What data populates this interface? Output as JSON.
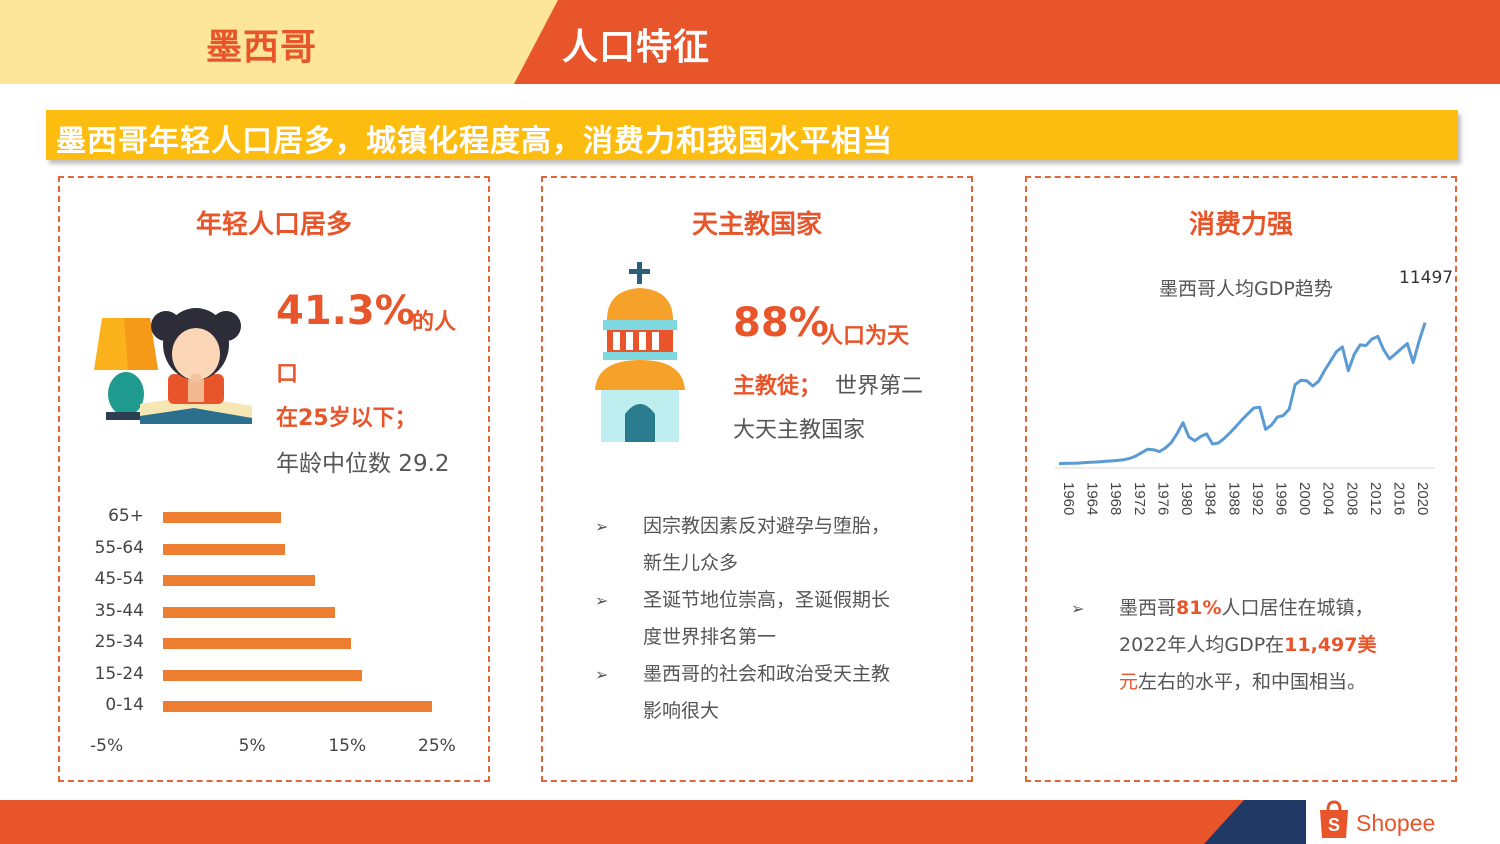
{
  "header": {
    "country": "墨西哥",
    "section": "人口特征"
  },
  "banner": {
    "text": "墨西哥年轻人口居多，城镇化程度高，消费力和我国水平相当"
  },
  "card1": {
    "title": "年轻人口居多",
    "stat_pct": "41.3%",
    "stat_suffix": "的人",
    "stat_line2": "口",
    "stat_line3": "在25岁以下；",
    "stat_line4": "年龄中位数 29.2"
  },
  "card2": {
    "title": "天主教国家",
    "stat_pct": "88%",
    "stat_suffix": "人口为天",
    "stat_line2_a": "主教徒；",
    "stat_line2_b": "世界第二",
    "stat_line3": "大天主教国家",
    "bullets": [
      {
        "line1": "因宗教因素反对避孕与堕胎，",
        "line2": "新生儿众多"
      },
      {
        "line1": "圣诞节地位崇高，圣诞假期长",
        "line2": "度世界排名第一"
      },
      {
        "line1": "墨西哥的社会和政治受天主教",
        "line2": "影响很大"
      }
    ]
  },
  "card3": {
    "title": "消费力强",
    "chart_title": "墨西哥人均GDP趋势",
    "end_label": "11497",
    "bullet": {
      "p1": "墨西哥",
      "h1": "81%",
      "p2": "人口居住在城镇，",
      "p3": "2022年人均GDP在",
      "h2": "11,497美",
      "h3": "元",
      "p4": "左右的水平，和中国相当。"
    }
  },
  "icons": {
    "bullet": "arrow-bullet-icon"
  },
  "colors": {
    "orange": "#e8552a",
    "yellow": "#fdbd10",
    "pale_yellow": "#fde59a",
    "bar": "#ed7d31",
    "line": "#5b9bd5",
    "navy": "#1f3864"
  },
  "footer": {
    "brand": "Shopee"
  },
  "chart_data": [
    {
      "type": "bar",
      "orientation": "horizontal",
      "categories": [
        "65+",
        "55-64",
        "45-54",
        "35-44",
        "25-34",
        "15-24",
        "0-14"
      ],
      "values": [
        8.2,
        8.6,
        12,
        14.2,
        16,
        17.2,
        25
      ],
      "xticks": [
        "-5%",
        "5%",
        "15%",
        "25%"
      ],
      "xlim": [
        -5,
        25
      ],
      "unit": "%"
    },
    {
      "type": "line",
      "title": "墨西哥人均GDP趋势",
      "x": [
        1960,
        1961,
        1962,
        1963,
        1964,
        1965,
        1966,
        1967,
        1968,
        1969,
        1970,
        1971,
        1972,
        1973,
        1974,
        1975,
        1976,
        1977,
        1978,
        1979,
        1980,
        1981,
        1982,
        1983,
        1984,
        1985,
        1986,
        1987,
        1988,
        1989,
        1990,
        1991,
        1992,
        1993,
        1994,
        1995,
        1996,
        1997,
        1998,
        1999,
        2000,
        2001,
        2002,
        2003,
        2004,
        2005,
        2006,
        2007,
        2008,
        2009,
        2010,
        2011,
        2012,
        2013,
        2014,
        2015,
        2016,
        2017,
        2018,
        2019,
        2020,
        2021,
        2022
      ],
      "values": [
        350,
        360,
        370,
        380,
        420,
        440,
        470,
        500,
        530,
        560,
        600,
        660,
        760,
        940,
        1210,
        1480,
        1450,
        1300,
        1580,
        2000,
        2720,
        3580,
        2450,
        2150,
        2500,
        2700,
        1900,
        1980,
        2350,
        2800,
        3300,
        3820,
        4290,
        4750,
        4800,
        3050,
        3400,
        4030,
        4150,
        4650,
        6590,
        6950,
        6890,
        6490,
        6870,
        7710,
        8450,
        9210,
        9580,
        7690,
        8990,
        9740,
        9690,
        10200,
        10420,
        9350,
        8630,
        9030,
        9450,
        9850,
        8350,
        10050,
        11497
      ],
      "xticks": [
        1960,
        1964,
        1968,
        1972,
        1976,
        1980,
        1984,
        1988,
        1992,
        1996,
        2000,
        2004,
        2008,
        2012,
        2016,
        2020
      ],
      "ylim": [
        0,
        12500
      ],
      "end_label": "11497"
    }
  ]
}
